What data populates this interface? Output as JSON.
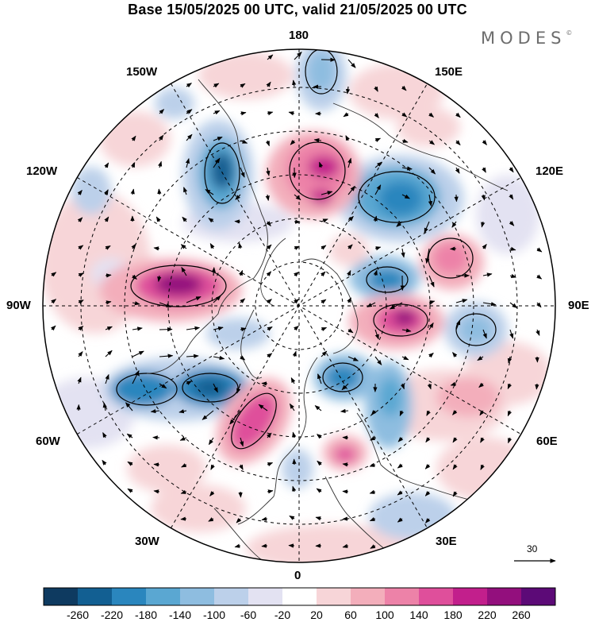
{
  "title": "Base 15/05/2025 00 UTC, valid 21/05/2025 00 UTC",
  "logo": {
    "text": "MODES",
    "mark": "©"
  },
  "longitude_labels": {
    "lon_180": "180",
    "lon_150e": "150E",
    "lon_120e": "120E",
    "lon_90e": "90E",
    "lon_60e": "60E",
    "lon_30e": "30E",
    "lon_0": "0",
    "lon_30w": "30W",
    "lon_60w": "60W",
    "lon_90w": "90W",
    "lon_120w": "120W",
    "lon_150w": "150W"
  },
  "reference_vector": {
    "value": "30"
  },
  "colorbar": {
    "colors": [
      "#0e3a60",
      "#125f92",
      "#2a86be",
      "#5aa7d2",
      "#8ebde0",
      "#bcd0ea",
      "#e3e2f2",
      "#ffffff",
      "#f7d5d8",
      "#f3aebb",
      "#ed82a8",
      "#df4f9b",
      "#c21f8c",
      "#930f7d",
      "#5c0a77"
    ],
    "ticks": [
      "-260",
      "-220",
      "-180",
      "-140",
      "-100",
      "-60",
      "-20",
      "20",
      "60",
      "100",
      "140",
      "180",
      "220",
      "260"
    ]
  }
}
